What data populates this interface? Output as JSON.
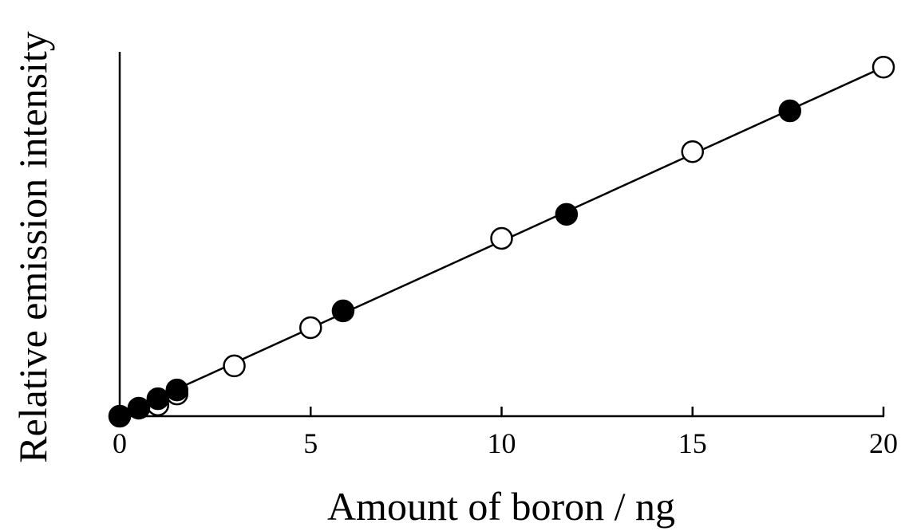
{
  "chart_data": {
    "type": "scatter",
    "x_label": "Amount of boron / ng",
    "y_label": "Relative emission intensity",
    "xlim": [
      0,
      20
    ],
    "xticks": [
      0,
      5,
      10,
      15,
      20
    ],
    "ylim": [
      0,
      1
    ],
    "series": [
      {
        "style": "line",
        "color": "#000000",
        "x": [
          0,
          20
        ],
        "values": [
          0.003,
          0.958
        ]
      },
      {
        "style": "open",
        "color": "#000000",
        "x": [
          1,
          1.5,
          3,
          5,
          10,
          15,
          20
        ],
        "values": [
          0.031,
          0.061,
          0.138,
          0.243,
          0.488,
          0.726,
          0.958
        ]
      },
      {
        "style": "filled",
        "color": "#000000",
        "x": [
          0,
          0.5,
          1,
          1.5,
          5.85,
          11.7,
          17.55
        ],
        "values": [
          0,
          0.022,
          0.048,
          0.072,
          0.289,
          0.554,
          0.838
        ]
      }
    ]
  }
}
